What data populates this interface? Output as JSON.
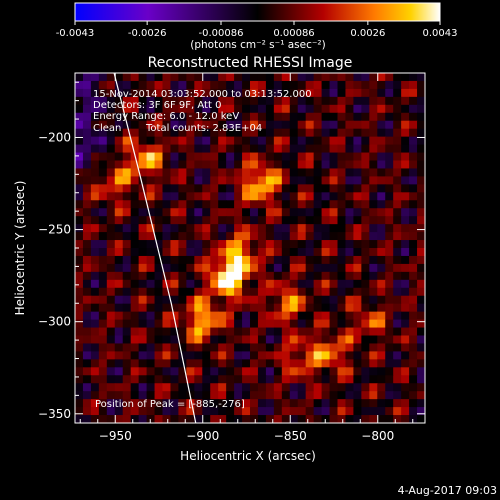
{
  "colorbar": {
    "tick_labels": [
      "-0.0043",
      "-0.0026",
      "-0.00086",
      "0.00086",
      "0.0026",
      "0.0043"
    ],
    "tick_values": [
      -0.0043,
      -0.0026,
      -0.00086,
      0.00086,
      0.0026,
      0.0043
    ],
    "range": [
      -0.0043,
      0.0043
    ],
    "units": "(photons cm⁻² s⁻¹ asec⁻²)",
    "colors": [
      "#0000ff",
      "#6a00c8",
      "#000000",
      "#b40000",
      "#ff7a00",
      "#ffd200",
      "#ffffff"
    ]
  },
  "chart_data": {
    "type": "heatmap",
    "title": "Reconstructed RHESSI Image",
    "xlabel": "Heliocentric X (arcsec)",
    "ylabel": "Heliocentric Y (arcsec)",
    "xlim": [
      -973,
      -773
    ],
    "ylim": [
      -355,
      -165
    ],
    "xticks": [
      -950,
      -900,
      -850,
      -800
    ],
    "yticks": [
      -200,
      -250,
      -300,
      -350
    ],
    "xtick_labels": [
      "−950",
      "−900",
      "−850",
      "−800"
    ],
    "ytick_labels": [
      "−200",
      "−250",
      "−300",
      "−350"
    ],
    "peak": [
      -885,
      -276
    ],
    "bright_sources": [
      {
        "x": -885,
        "y": -276,
        "value": 0.0043
      },
      {
        "x": -867,
        "y": -225,
        "value": 0.0032
      },
      {
        "x": -900,
        "y": -299,
        "value": 0.003
      },
      {
        "x": -933,
        "y": -212,
        "value": 0.0026
      },
      {
        "x": -878,
        "y": -262,
        "value": 0.0024
      },
      {
        "x": -852,
        "y": -290,
        "value": 0.0022
      },
      {
        "x": -827,
        "y": -317,
        "value": 0.0022
      },
      {
        "x": -950,
        "y": -225,
        "value": 0.0018
      },
      {
        "x": -845,
        "y": -320,
        "value": 0.0017
      },
      {
        "x": -805,
        "y": -300,
        "value": 0.0016
      }
    ],
    "limb_curve": [
      {
        "x": -952,
        "y": -160
      },
      {
        "x": -936,
        "y": -220
      },
      {
        "x": -918,
        "y": -290
      },
      {
        "x": -904,
        "y": -355
      }
    ],
    "annotations": [
      "15-Nov-2014 03:03:52.000 to 03:13:52.000",
      "Detectors: 3F 6F 9F, Att 0",
      "Energy Range: 6.0 - 12.0 keV",
      "Clean",
      "Total counts: 2.83E+04"
    ],
    "peak_label": "Position of Peak = [-885,-276]"
  },
  "footer": {
    "date": "4-Aug-2017 09:03"
  }
}
